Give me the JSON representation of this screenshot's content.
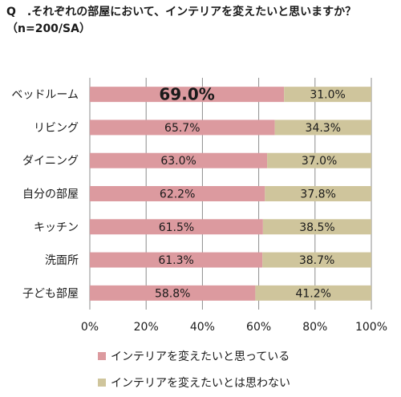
{
  "chart_data": {
    "type": "bar",
    "orientation": "horizontal",
    "stacked": true,
    "percent": true,
    "title": "Q　.それぞれの部屋において、インテリアを変えたいと思いますか？",
    "subtitle": "（n=200/SA）",
    "categories": [
      "ベッドルーム",
      "リビング",
      "ダイニング",
      "自分の部屋",
      "キッチン",
      "洗面所",
      "子ども部屋"
    ],
    "series": [
      {
        "name": "インテリアを変えたいと思っている",
        "color": "#dc9a9f",
        "values": [
          69.0,
          65.7,
          63.0,
          62.2,
          61.5,
          61.3,
          58.8
        ],
        "labels": [
          "69.0%",
          "65.7%",
          "63.0%",
          "62.2%",
          "61.5%",
          "61.3%",
          "58.8%"
        ]
      },
      {
        "name": "インテリアを変えたいとは思わない",
        "color": "#cfc59c",
        "values": [
          31.0,
          34.3,
          37.0,
          37.8,
          38.5,
          38.7,
          41.2
        ],
        "labels": [
          "31.0%",
          "34.3%",
          "37.0%",
          "37.8%",
          "38.5%",
          "38.7%",
          "41.2%"
        ]
      }
    ],
    "xlim": [
      0,
      100
    ],
    "x_ticks": [
      "0%",
      "20%",
      "40%",
      "60%",
      "80%",
      "100%"
    ],
    "grid": true,
    "legend_position": "bottom",
    "highlight": "69.0%"
  }
}
